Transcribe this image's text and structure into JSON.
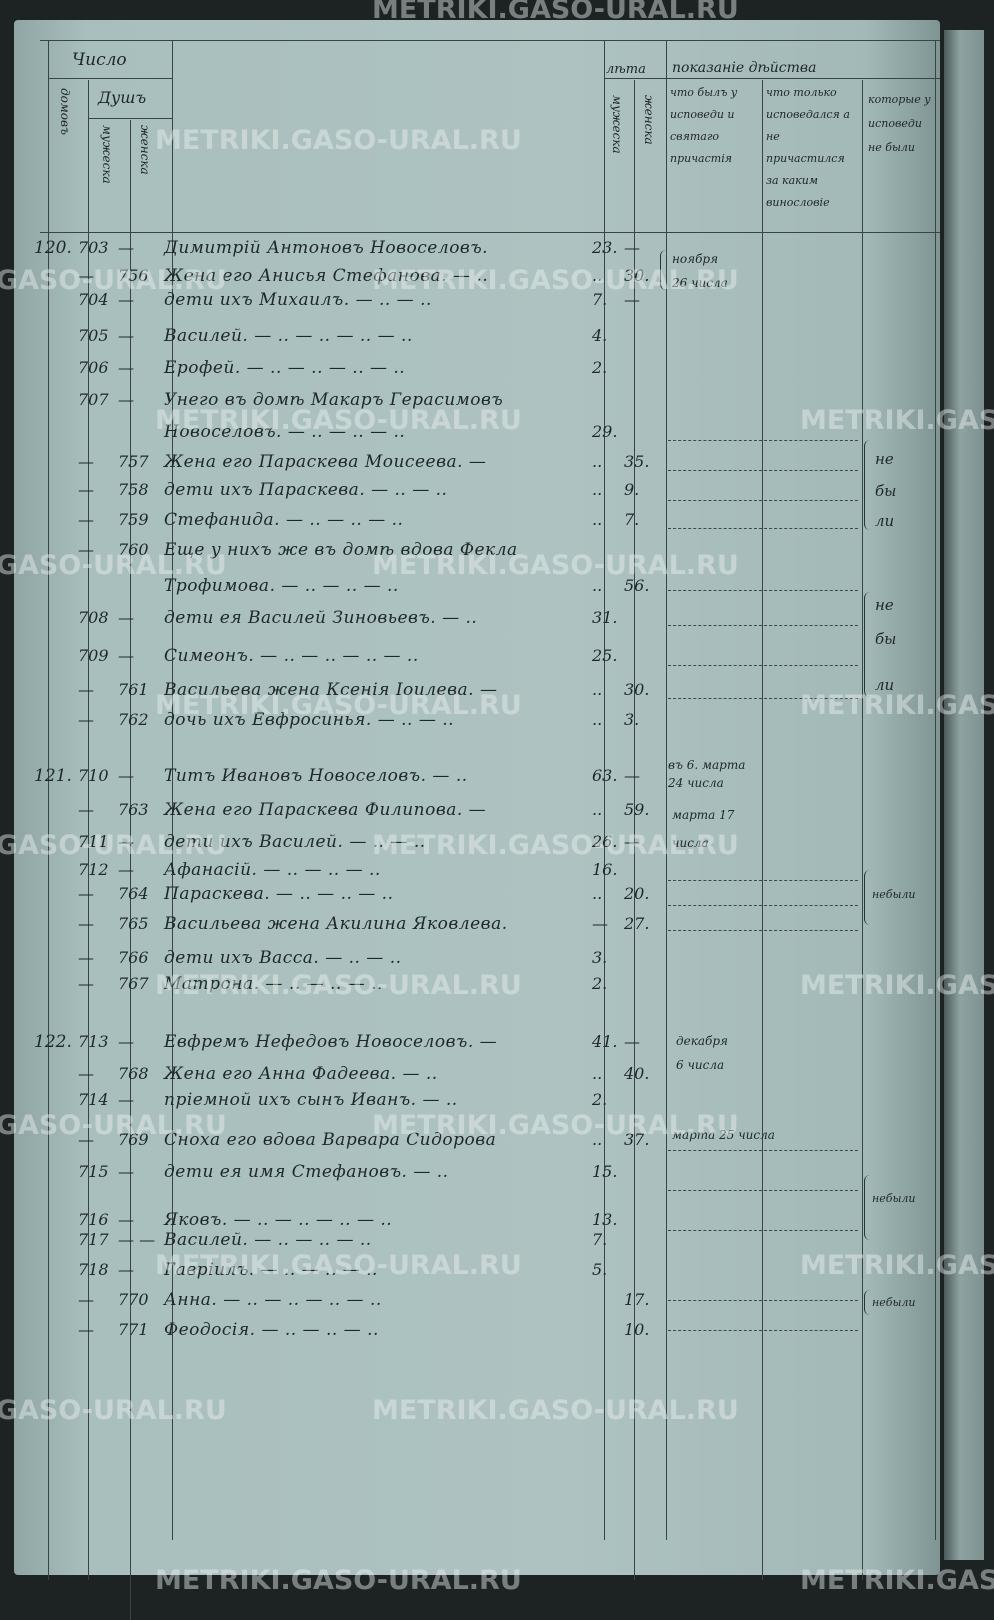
{
  "header": {
    "number": "Число",
    "houses": "домовъ",
    "souls": "Душъ",
    "souls_male": "мужеска",
    "souls_female": "женска",
    "age": "лѣта",
    "age_male": "мужеска",
    "age_female": "женска",
    "action": "показаніе дѣйства",
    "col_confessed": "что былъ у исповеди и святаго причастія",
    "col_not_communed": "что только исповедался а не причастился за каким винословіе",
    "col_absent": "которые у исповеди не были"
  },
  "rows": [
    {
      "house": "120.",
      "m": "703",
      "f": "—",
      "name": "Димитрій Антоновъ Новоселовъ.",
      "am": "23.",
      "af": "—"
    },
    {
      "house": "",
      "m": "—",
      "f": "756",
      "name": "Жена его Анисья Стефанова. — ..",
      "am": "..",
      "af": "30."
    },
    {
      "house": "",
      "m": "704",
      "f": "—",
      "name": "дети ихъ Михаилъ. — .. — ..",
      "am": "7.",
      "af": "—"
    },
    {
      "house": "",
      "m": "705",
      "f": "—",
      "name": "Василей. — .. — .. — .. — ..",
      "am": "4.",
      "af": ""
    },
    {
      "house": "",
      "m": "706",
      "f": "—",
      "name": "Ерофей. — .. — .. — .. — ..",
      "am": "2.",
      "af": ""
    },
    {
      "house": "",
      "m": "707",
      "f": "—",
      "name": "Унего въ домѣ Макаръ Герасимовъ",
      "am": "",
      "af": ""
    },
    {
      "house": "",
      "m": "",
      "f": "",
      "name": "Новоселовъ. — .. — .. — ..",
      "am": "29.",
      "af": ""
    },
    {
      "house": "",
      "m": "—",
      "f": "757",
      "name": "Жена его Параскева Моисеева. —",
      "am": "..",
      "af": "35."
    },
    {
      "house": "",
      "m": "—",
      "f": "758",
      "name": "дети ихъ Параскева. — .. — ..",
      "am": "..",
      "af": "9."
    },
    {
      "house": "",
      "m": "—",
      "f": "759",
      "name": "Стефанида. — .. — .. — ..",
      "am": "..",
      "af": "7."
    },
    {
      "house": "",
      "m": "—",
      "f": "760",
      "name": "Еще у нихъ же въ домѣ вдова Фекла",
      "am": "",
      "af": ""
    },
    {
      "house": "",
      "m": "",
      "f": "",
      "name": "Трофимова. — .. — .. — ..",
      "am": "..",
      "af": "56."
    },
    {
      "house": "",
      "m": "708",
      "f": "—",
      "name": "дети ея Василей Зиновьевъ. — ..",
      "am": "31.",
      "af": ""
    },
    {
      "house": "",
      "m": "709",
      "f": "—",
      "name": "Симеонъ. — .. — .. — .. — ..",
      "am": "25.",
      "af": ""
    },
    {
      "house": "",
      "m": "—",
      "f": "761",
      "name": "Васильева жена Ксенія Іоилева. —",
      "am": "..",
      "af": "30."
    },
    {
      "house": "",
      "m": "—",
      "f": "762",
      "name": "дочь ихъ Евфросинья. — .. — ..",
      "am": "..",
      "af": "3."
    },
    {
      "house": "121.",
      "m": "710",
      "f": "—",
      "name": "Титъ Ивановъ Новоселовъ. — ..",
      "am": "63.",
      "af": "—"
    },
    {
      "house": "",
      "m": "—",
      "f": "763",
      "name": "Жена его Параскева Филипова. —",
      "am": "..",
      "af": "59."
    },
    {
      "house": "",
      "m": "711",
      "f": "—",
      "name": "дети ихъ Василей. — .. — ..",
      "am": "26.",
      "af": "—"
    },
    {
      "house": "",
      "m": "712",
      "f": "—",
      "name": "Афанасій. — .. — .. — ..",
      "am": "16.",
      "af": ""
    },
    {
      "house": "",
      "m": "—",
      "f": "764",
      "name": "Параскева. — .. — .. — ..",
      "am": "..",
      "af": "20."
    },
    {
      "house": "",
      "m": "—",
      "f": "765",
      "name": "Васильева жена Акилина Яковлева.",
      "am": "—",
      "af": "27."
    },
    {
      "house": "",
      "m": "—",
      "f": "766",
      "name": "дети ихъ Васса. — .. — ..",
      "am": "3.",
      "af": ""
    },
    {
      "house": "",
      "m": "—",
      "f": "767",
      "name": "Матрона. — .. — .. — ..",
      "am": "2.",
      "af": ""
    },
    {
      "house": "122.",
      "m": "713",
      "f": "—",
      "name": "Евфремъ Нефедовъ Новоселовъ. —",
      "am": "41.",
      "af": "—"
    },
    {
      "house": "",
      "m": "—",
      "f": "768",
      "name": "Жена его Анна Фадеева. — ..",
      "am": "..",
      "af": "40."
    },
    {
      "house": "",
      "m": "714",
      "f": "—",
      "name": "пріемной ихъ сынъ Иванъ. — ..",
      "am": "2.",
      "af": ""
    },
    {
      "house": "",
      "m": "—",
      "f": "769",
      "name": "Сноха его вдова Варвара Сидорова",
      "am": "..",
      "af": "37."
    },
    {
      "house": "",
      "m": "715",
      "f": "—",
      "name": "дети ея имя Стефановъ. — ..",
      "am": "15.",
      "af": ""
    },
    {
      "house": "",
      "m": "716",
      "f": "—",
      "name": "Яковъ. — .. — .. — .. — ..",
      "am": "13.",
      "af": ""
    },
    {
      "house": "",
      "m": "717",
      "f": "— —",
      "name": "Василей. — .. — .. — ..",
      "am": "7.",
      "af": ""
    },
    {
      "house": "",
      "m": "718",
      "f": "—",
      "name": "Гавріилъ. — .. — .. — ..",
      "am": "5.",
      "af": ""
    },
    {
      "house": "",
      "m": "—",
      "f": "770",
      "name": "Анна. — .. — .. — .. — ..",
      "am": "",
      "af": "17."
    },
    {
      "house": "",
      "m": "—",
      "f": "771",
      "name": "Феодосія. — .. — .. — ..",
      "am": "",
      "af": "10."
    }
  ],
  "notes": [
    "ноября",
    "26 числа",
    "въ 6. марта",
    "24 числа",
    "марта 17",
    "числа",
    "декабря",
    "6 числа",
    "марта 25 числа"
  ],
  "absent": [
    "не",
    "бы",
    "ли",
    "не",
    "бы",
    "ли",
    "небыли",
    "небыли",
    "небыли"
  ],
  "watermark": "METRIKI.GASO-URAL.RU"
}
